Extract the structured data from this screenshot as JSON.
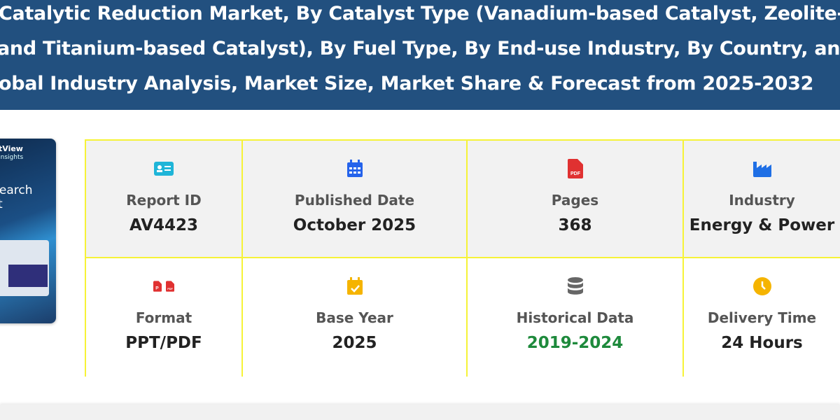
{
  "header": {
    "title_lines": [
      "Catalytic Reduction Market, By Catalyst Type (Vanadium-based Catalyst, Zeolite-based",
      "and Titanium-based Catalyst), By Fuel Type, By End-use Industry, By Country, and",
      "obal Industry Analysis, Market Size, Market Share & Forecast from 2025-2032"
    ]
  },
  "cover": {
    "brand": "tView",
    "brand_sub": "Insights",
    "title": "search\nrt"
  },
  "details": [
    {
      "label": "Report ID",
      "value": "AV4423",
      "icon": "id-card-icon",
      "color": "#1fb5d8"
    },
    {
      "label": "Published Date",
      "value": "October 2025",
      "icon": "calendar-icon",
      "color": "#2563eb"
    },
    {
      "label": "Pages",
      "value": "368",
      "icon": "pdf-file-icon",
      "color": "#e03131"
    },
    {
      "label": "Industry",
      "value": "Energy & Power",
      "icon": "industry-icon",
      "color": "#1f6fe5"
    },
    {
      "label": "Format",
      "value": "PPT/PDF",
      "icon": "ppt-pdf-icon",
      "color": "#e03131"
    },
    {
      "label": "Base Year",
      "value": "2025",
      "icon": "calendar-check-icon",
      "color": "#f5b400"
    },
    {
      "label": "Historical Data",
      "value": "2019-2024",
      "icon": "database-icon",
      "color": "#666666",
      "value_color": "#1e8a3c"
    },
    {
      "label": "Delivery Time",
      "value": "24 Hours",
      "icon": "clock-icon",
      "color": "#f5b400"
    }
  ]
}
